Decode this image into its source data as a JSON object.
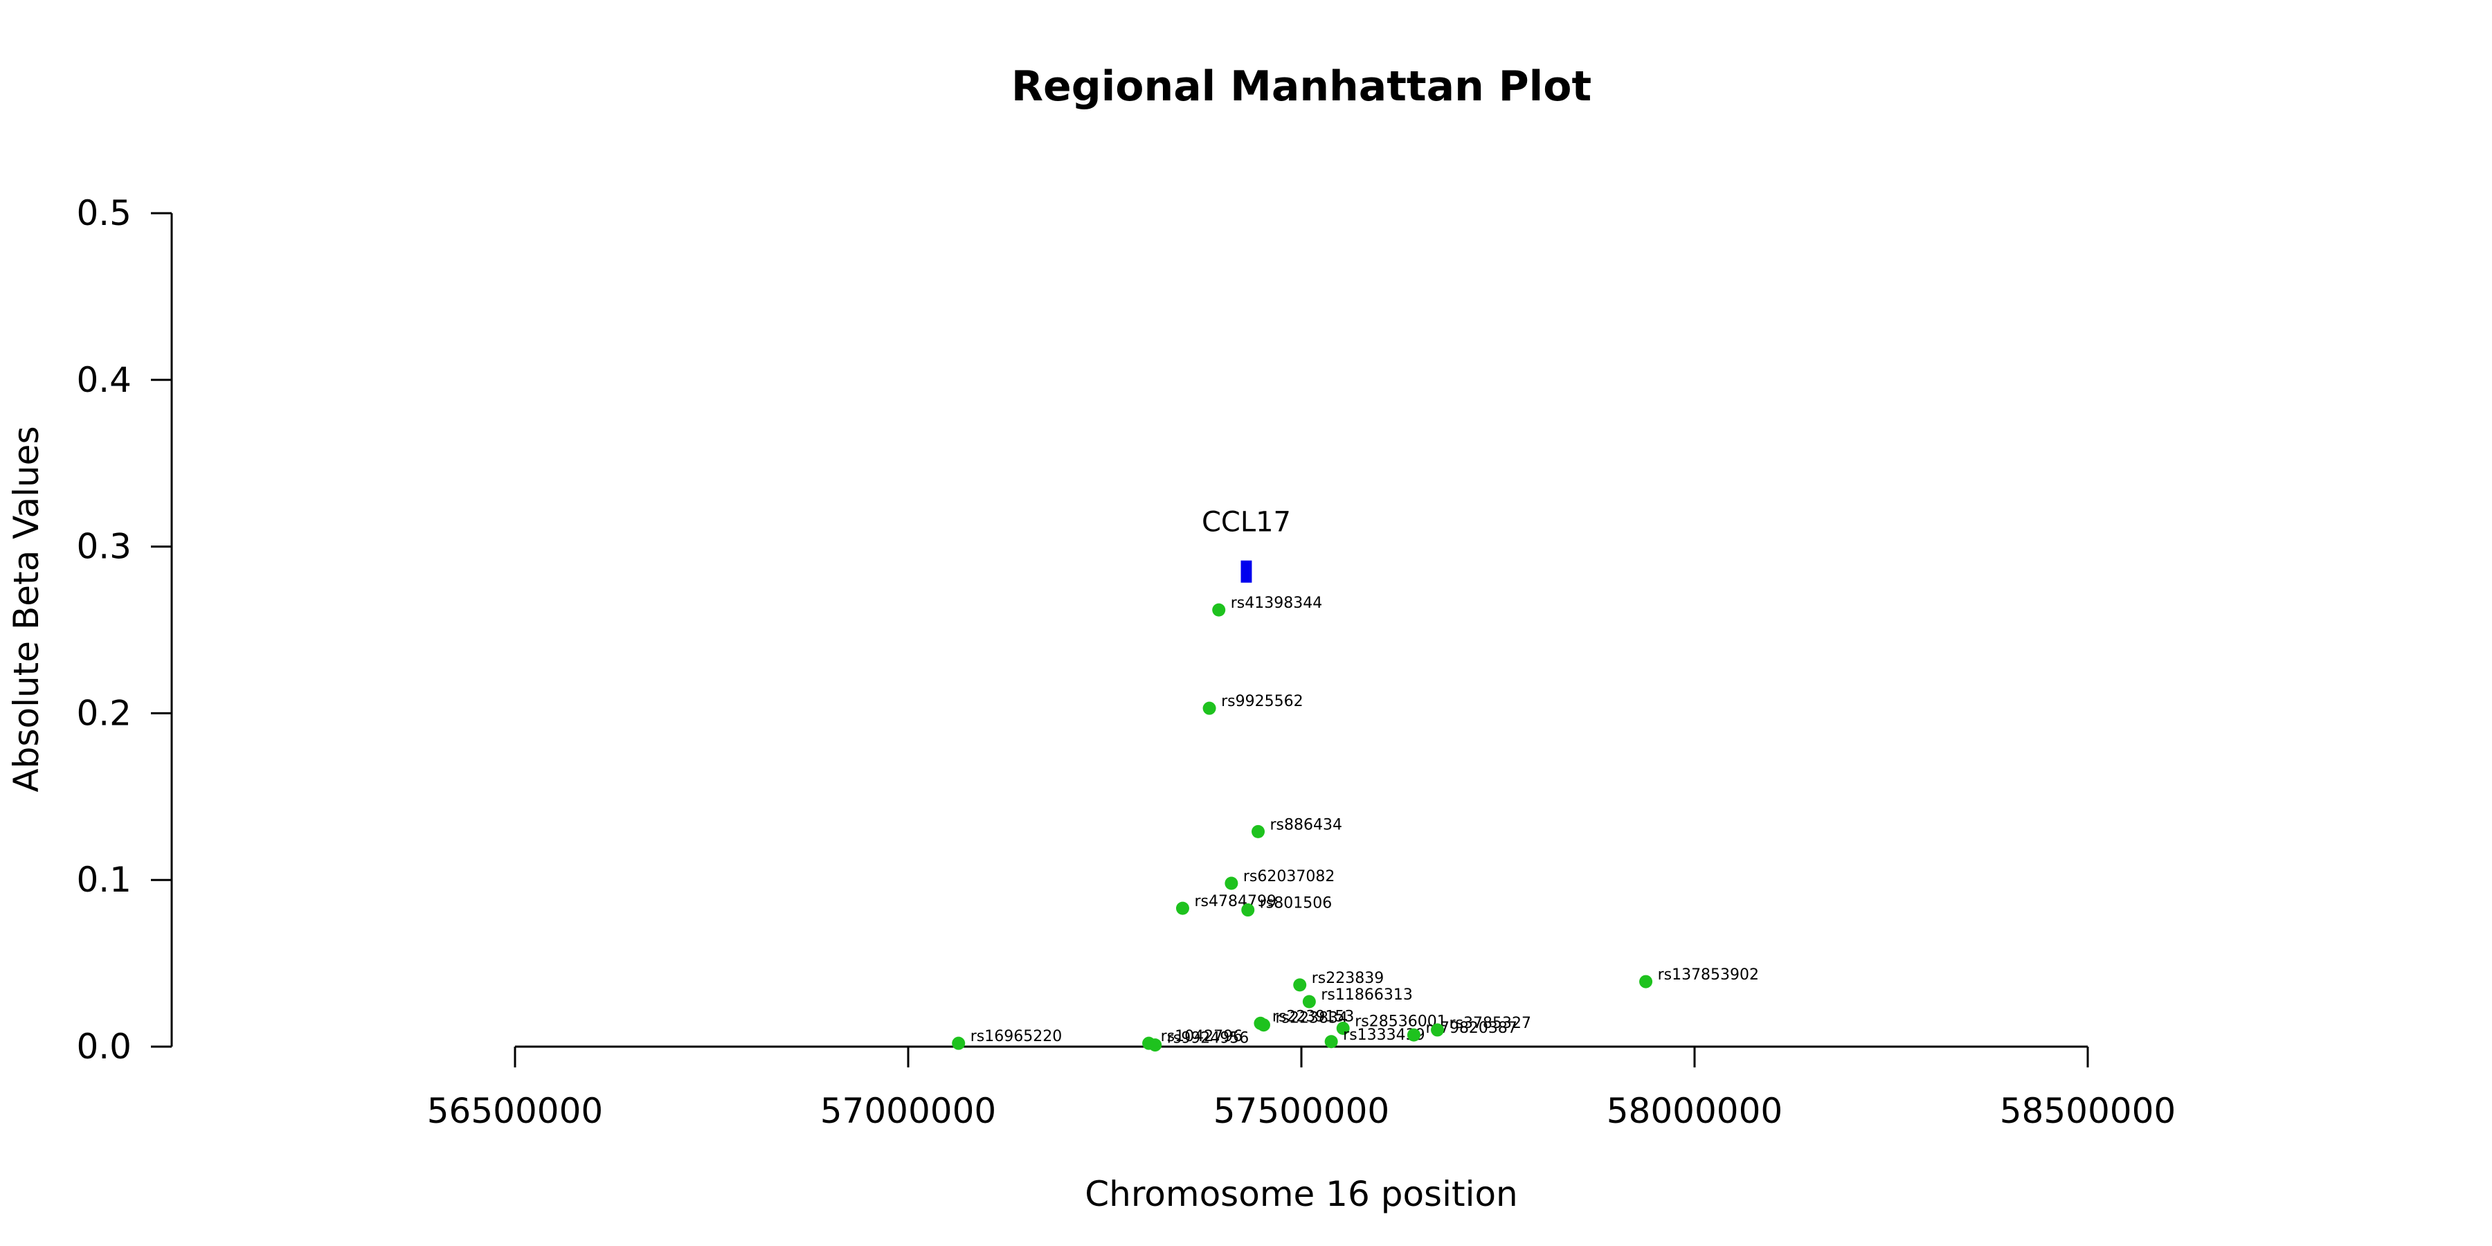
{
  "chart_data": {
    "type": "scatter",
    "title": "Regional Manhattan Plot",
    "xlabel": "Chromosome 16 position",
    "ylabel": "Absolute Beta Values",
    "xlim": [
      56500000,
      58500000
    ],
    "ylim": [
      0,
      0.5
    ],
    "xticks": [
      56500000,
      57000000,
      57500000,
      58000000,
      58500000
    ],
    "xtick_labels": [
      "56500000",
      "57000000",
      "57500000",
      "58000000",
      "58500000"
    ],
    "yticks": [
      0,
      0.1,
      0.2,
      0.3,
      0.4,
      0.5
    ],
    "ytick_labels": [
      "0.0",
      "0.1",
      "0.2",
      "0.3",
      "0.4",
      "0.5"
    ],
    "grid": false,
    "point_color": "#1ec21e",
    "gene_color": "#0000ee",
    "gene": {
      "name": "CCL17",
      "start": 57423000,
      "end": 57437000,
      "y": 0.285
    },
    "points": [
      {
        "label": "rs41398344",
        "x": 57395000,
        "y": 0.262
      },
      {
        "label": "rs9925562",
        "x": 57383000,
        "y": 0.203
      },
      {
        "label": "rs886434",
        "x": 57445000,
        "y": 0.129
      },
      {
        "label": "rs62037082",
        "x": 57411000,
        "y": 0.098
      },
      {
        "label": "rs4784799",
        "x": 57349000,
        "y": 0.083
      },
      {
        "label": "rs801506",
        "x": 57432000,
        "y": 0.082
      },
      {
        "label": "rs223839",
        "x": 57498000,
        "y": 0.037
      },
      {
        "label": "rs137853902",
        "x": 57938000,
        "y": 0.039
      },
      {
        "label": "rs11866313",
        "x": 57510000,
        "y": 0.027
      },
      {
        "label": "rs2239153",
        "x": 57448000,
        "y": 0.014
      },
      {
        "label": "rs223834",
        "x": 57452000,
        "y": 0.013
      },
      {
        "label": "rs28536001",
        "x": 57553000,
        "y": 0.011
      },
      {
        "label": "rs1333439",
        "x": 57538000,
        "y": 0.003
      },
      {
        "label": "rs79820387",
        "x": 57643000,
        "y": 0.007
      },
      {
        "label": "rs3785327",
        "x": 57673000,
        "y": 0.01
      },
      {
        "label": "rs16965220",
        "x": 57064000,
        "y": 0.002
      },
      {
        "label": "rs1042796",
        "x": 57306000,
        "y": 0.002
      },
      {
        "label": "rs9924956",
        "x": 57314000,
        "y": 0.001
      }
    ]
  }
}
